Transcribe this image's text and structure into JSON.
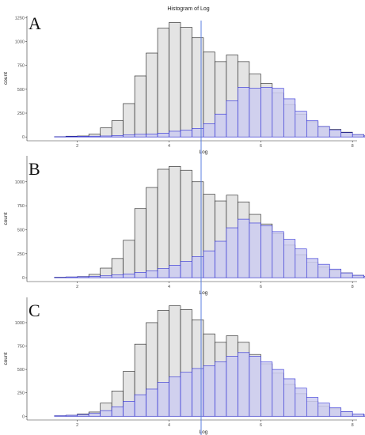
{
  "figure": {
    "title": "Histogram of Log",
    "vline_color": "#5b7fe0",
    "gray_fill": "#e4e4e4",
    "gray_stroke": "#1a1a1a",
    "blue_fill": "#ccccf0",
    "blue_stroke": "#2b2bd6"
  },
  "chart_data": [
    {
      "panel": "A",
      "type": "bar",
      "xlabel": "Log",
      "ylabel": "count",
      "xlim": [
        0.9,
        8.1
      ],
      "ylim": [
        -40,
        1270
      ],
      "xticks": [
        2,
        4,
        6,
        8
      ],
      "yticks": [
        0,
        250,
        500,
        750,
        1000,
        1250
      ],
      "vline_x": 4.7,
      "bin_width": 0.25,
      "bin_start": 1.0,
      "series": [
        {
          "values": [
            0,
            0,
            3,
            8,
            10,
            30,
            95,
            170,
            350,
            640,
            880,
            1140,
            1200,
            1150,
            1040,
            890,
            790,
            860,
            790,
            660,
            560,
            460,
            340,
            240,
            160,
            110,
            80,
            50,
            25,
            12,
            5,
            2,
            1,
            0
          ]
        },
        {
          "values": [
            0,
            0,
            2,
            5,
            6,
            8,
            10,
            15,
            22,
            28,
            32,
            40,
            60,
            72,
            90,
            140,
            240,
            380,
            520,
            510,
            520,
            510,
            400,
            270,
            170,
            110,
            75,
            45,
            25,
            10,
            5,
            2,
            1,
            0
          ]
        }
      ]
    },
    {
      "panel": "B",
      "type": "bar",
      "xlabel": "Log",
      "ylabel": "count",
      "xlim": [
        0.9,
        8.1
      ],
      "ylim": [
        -40,
        1270
      ],
      "xticks": [
        2,
        4,
        6,
        8
      ],
      "yticks": [
        0,
        250,
        500,
        750,
        1000
      ],
      "vline_x": 4.7,
      "bin_width": 0.25,
      "bin_start": 1.0,
      "series": [
        {
          "values": [
            0,
            0,
            5,
            8,
            12,
            35,
            100,
            200,
            390,
            720,
            940,
            1130,
            1160,
            1120,
            1000,
            870,
            800,
            860,
            790,
            660,
            560,
            460,
            340,
            240,
            160,
            110,
            80,
            50,
            25,
            12,
            5,
            2,
            1,
            0
          ]
        },
        {
          "values": [
            0,
            0,
            3,
            8,
            10,
            15,
            20,
            30,
            40,
            55,
            70,
            95,
            130,
            170,
            220,
            280,
            380,
            520,
            610,
            570,
            540,
            480,
            400,
            300,
            200,
            140,
            90,
            50,
            25,
            12,
            5,
            2,
            1,
            0
          ]
        }
      ]
    },
    {
      "panel": "C",
      "type": "bar",
      "xlabel": "Log",
      "ylabel": "count",
      "xlim": [
        0.9,
        8.1
      ],
      "ylim": [
        -40,
        1270
      ],
      "xticks": [
        2,
        4,
        6,
        8
      ],
      "yticks": [
        0,
        250,
        500,
        750,
        1000
      ],
      "vline_x": 4.7,
      "bin_width": 0.25,
      "bin_start": 1.0,
      "series": [
        {
          "values": [
            0,
            0,
            5,
            10,
            25,
            45,
            140,
            270,
            480,
            770,
            1000,
            1130,
            1180,
            1140,
            1030,
            880,
            790,
            860,
            790,
            660,
            560,
            460,
            340,
            240,
            160,
            110,
            80,
            50,
            25,
            12,
            5,
            2,
            1,
            0
          ]
        },
        {
          "values": [
            0,
            0,
            4,
            10,
            18,
            30,
            60,
            100,
            160,
            230,
            290,
            360,
            420,
            470,
            510,
            540,
            580,
            640,
            680,
            640,
            580,
            500,
            400,
            300,
            200,
            140,
            90,
            50,
            25,
            12,
            5,
            2,
            1,
            0
          ]
        }
      ]
    }
  ]
}
